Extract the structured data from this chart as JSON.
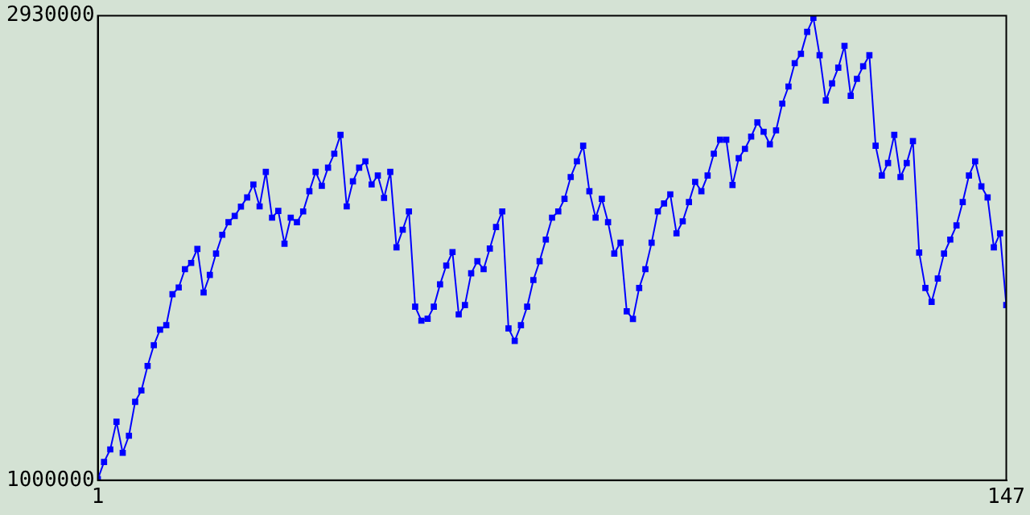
{
  "chart_data": {
    "type": "line",
    "marker": "square",
    "grid": false,
    "x": [
      1,
      2,
      3,
      4,
      5,
      6,
      7,
      8,
      9,
      10,
      11,
      12,
      13,
      14,
      15,
      16,
      17,
      18,
      19,
      20,
      21,
      22,
      23,
      24,
      25,
      26,
      27,
      28,
      29,
      30,
      31,
      32,
      33,
      34,
      35,
      36,
      37,
      38,
      39,
      40,
      41,
      42,
      43,
      44,
      45,
      46,
      47,
      48,
      49,
      50,
      51,
      52,
      53,
      54,
      55,
      56,
      57,
      58,
      59,
      60,
      61,
      62,
      63,
      64,
      65,
      66,
      67,
      68,
      69,
      70,
      71,
      72,
      73,
      74,
      75,
      76,
      77,
      78,
      79,
      80,
      81,
      82,
      83,
      84,
      85,
      86,
      87,
      88,
      89,
      90,
      91,
      92,
      93,
      94,
      95,
      96,
      97,
      98,
      99,
      100,
      101,
      102,
      103,
      104,
      105,
      106,
      107,
      108,
      109,
      110,
      111,
      112,
      113,
      114,
      115,
      116,
      117,
      118,
      119,
      120,
      121,
      122,
      123,
      124,
      125,
      126,
      127,
      128,
      129,
      130,
      131,
      132,
      133,
      134,
      135,
      136,
      137,
      138,
      139,
      140,
      141,
      142,
      143,
      144,
      145,
      146,
      147
    ],
    "series": [
      {
        "color": "#0000ff",
        "values": [
          1005000,
          1076000,
          1128000,
          1243000,
          1114000,
          1185000,
          1326000,
          1373000,
          1475000,
          1561000,
          1626000,
          1644000,
          1773000,
          1801000,
          1877000,
          1903000,
          1961000,
          1780000,
          1853000,
          1942000,
          2020000,
          2072000,
          2098000,
          2137000,
          2175000,
          2229000,
          2138000,
          2281000,
          2091000,
          2119000,
          1983000,
          2091000,
          2072000,
          2117000,
          2201000,
          2281000,
          2223000,
          2299000,
          2357000,
          2435000,
          2138000,
          2242000,
          2299000,
          2325000,
          2229000,
          2266000,
          2173000,
          2281000,
          1968000,
          2041000,
          2117000,
          1721000,
          1663000,
          1671000,
          1721000,
          1814000,
          1892000,
          1948000,
          1689000,
          1728000,
          1860000,
          1910000,
          1877000,
          1963000,
          2052000,
          2117000,
          1631000,
          1579000,
          1644000,
          1721000,
          1832000,
          1910000,
          2000000,
          2091000,
          2117000,
          2169000,
          2260000,
          2325000,
          2390000,
          2201000,
          2091000,
          2169000,
          2072000,
          1942000,
          1987000,
          1702000,
          1670000,
          1799000,
          1877000,
          1987000,
          2117000,
          2150000,
          2188000,
          2026000,
          2076000,
          2156000,
          2240000,
          2201000,
          2266000,
          2357000,
          2415000,
          2415000,
          2227000,
          2338000,
          2377000,
          2428000,
          2487000,
          2448000,
          2396000,
          2454000,
          2565000,
          2636000,
          2733000,
          2772000,
          2863000,
          2921000,
          2766000,
          2578000,
          2649000,
          2714000,
          2805000,
          2597000,
          2668000,
          2720000,
          2766000,
          2390000,
          2266000,
          2318000,
          2435000,
          2260000,
          2318000,
          2409000,
          1946000,
          1799000,
          1741000,
          1838000,
          1942000,
          2000000,
          2059000,
          2156000,
          2266000,
          2325000,
          2221000,
          2175000,
          1968000,
          2026000,
          1728000
        ]
      }
    ],
    "xlim": [
      1,
      147
    ],
    "xticks": [
      1,
      147
    ],
    "ylim": [
      1000000,
      2930000
    ],
    "yticks": [
      1000000,
      2930000
    ]
  }
}
